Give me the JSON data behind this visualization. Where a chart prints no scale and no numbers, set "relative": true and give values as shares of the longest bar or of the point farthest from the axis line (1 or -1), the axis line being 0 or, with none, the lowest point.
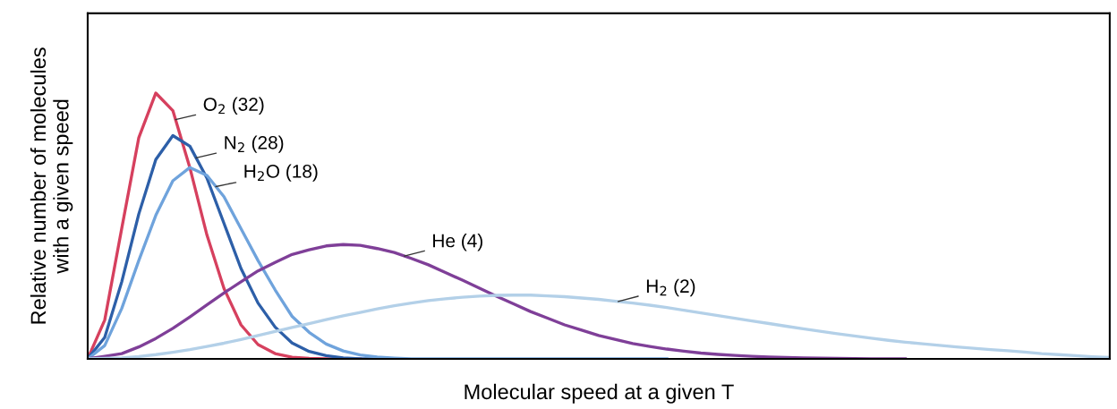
{
  "chart_data": {
    "type": "line",
    "relative": true,
    "xlabel": "Molecular speed at a given T",
    "ylabel": "Relative number of molecules\nwith a given speed",
    "categories": [
      null,
      null,
      null,
      null,
      null,
      null,
      null,
      null,
      null,
      null,
      null,
      null,
      null,
      null,
      null,
      null,
      null,
      null,
      null,
      null,
      null,
      null,
      null,
      null,
      null,
      null,
      null,
      null,
      null,
      null,
      null,
      null,
      null,
      null,
      null,
      null,
      null,
      null,
      null,
      null,
      null,
      null,
      null,
      null,
      null,
      null,
      null,
      null,
      null,
      null,
      null,
      null,
      null,
      null,
      null,
      null,
      null,
      null,
      null,
      null,
      null
    ],
    "legend": false,
    "marker": "none",
    "line_style": "solid",
    "series": [
      {
        "name": "O$_{2}$ (32)",
        "color": "#d6405e",
        "values": [
          0,
          0.146,
          0.491,
          0.832,
          1.0,
          0.934,
          0.719,
          0.466,
          0.265,
          0.128,
          0.054,
          0.02,
          0.006,
          0.002,
          0,
          0,
          0,
          null,
          null,
          null,
          null,
          null,
          null,
          null,
          null,
          null,
          null,
          null,
          null,
          null,
          null,
          null,
          null,
          null,
          null,
          null,
          null,
          null,
          null,
          null,
          null,
          null,
          null,
          null,
          null,
          null,
          null,
          null,
          null,
          null,
          null,
          null,
          null,
          null,
          null,
          null,
          null,
          null,
          null,
          null,
          null
        ]
      },
      {
        "name": "N$_{2}$ (28)",
        "color": "#2d5fa8",
        "values": [
          0,
          0.081,
          0.29,
          0.545,
          0.75,
          0.84,
          0.8,
          0.68,
          0.51,
          0.34,
          0.21,
          0.12,
          0.06,
          0.028,
          0.012,
          0.004,
          0,
          0,
          0,
          null,
          null,
          null,
          null,
          null,
          null,
          null,
          null,
          null,
          null,
          null,
          null,
          null,
          null,
          null,
          null,
          null,
          null,
          null,
          null,
          null,
          null,
          null,
          null,
          null,
          null,
          null,
          null,
          null,
          null,
          null,
          null,
          null,
          null,
          null,
          null,
          null,
          null,
          null,
          null,
          null,
          null
        ]
      },
      {
        "name": "H$_{2}$O (18)",
        "color": "#6fa3dc",
        "values": [
          0,
          0.05,
          0.19,
          0.37,
          0.54,
          0.67,
          0.72,
          0.69,
          0.61,
          0.49,
          0.37,
          0.26,
          0.16,
          0.1,
          0.056,
          0.03,
          0.015,
          0.007,
          0.003,
          0,
          0,
          0,
          0,
          0,
          0,
          0,
          0,
          0,
          0,
          0,
          0,
          0,
          0,
          0,
          0,
          null,
          null,
          null,
          null,
          null,
          null,
          null,
          null,
          null,
          null,
          null,
          null,
          null,
          null,
          null,
          null,
          null,
          null,
          null,
          null,
          null,
          null,
          null,
          null,
          null,
          null
        ]
      },
      {
        "name": "He (4)",
        "color": "#7f3f98",
        "values": [
          0,
          0.01,
          0.02,
          0.045,
          0.077,
          0.115,
          0.158,
          0.203,
          0.248,
          0.29,
          0.331,
          0.363,
          0.393,
          0.41,
          0.425,
          0.43,
          0.427,
          0.415,
          0.4,
          0.378,
          0.354,
          0.325,
          0.296,
          0.266,
          0.236,
          0.207,
          0.178,
          0.153,
          0.128,
          0.108,
          0.088,
          0.073,
          0.058,
          0.047,
          0.037,
          0.029,
          0.022,
          0.017,
          0.013,
          0.01,
          0.007,
          0.005,
          0.004,
          0.003,
          0.002,
          0.001,
          0,
          0,
          0,
          null,
          null,
          null,
          null,
          null,
          null,
          null,
          null,
          null,
          null,
          null,
          null
        ]
      },
      {
        "name": "H$_{2}$ (2)",
        "color": "#b3d0e8",
        "values": [
          0,
          0.002,
          0.004,
          0.009,
          0.016,
          0.025,
          0.035,
          0.047,
          0.059,
          0.073,
          0.088,
          0.103,
          0.118,
          0.133,
          0.148,
          0.162,
          0.175,
          0.188,
          0.2,
          0.21,
          0.219,
          0.226,
          0.232,
          0.236,
          0.239,
          0.24,
          0.24,
          0.237,
          0.234,
          0.229,
          0.224,
          0.217,
          0.21,
          0.202,
          0.193,
          0.183,
          0.173,
          0.163,
          0.153,
          0.143,
          0.133,
          0.123,
          0.113,
          0.104,
          0.095,
          0.086,
          0.078,
          0.07,
          0.063,
          0.057,
          0.051,
          0.045,
          0.04,
          0.035,
          0.031,
          0.026,
          0.02,
          0.016,
          0.012,
          0.008,
          0.005
        ]
      }
    ]
  }
}
